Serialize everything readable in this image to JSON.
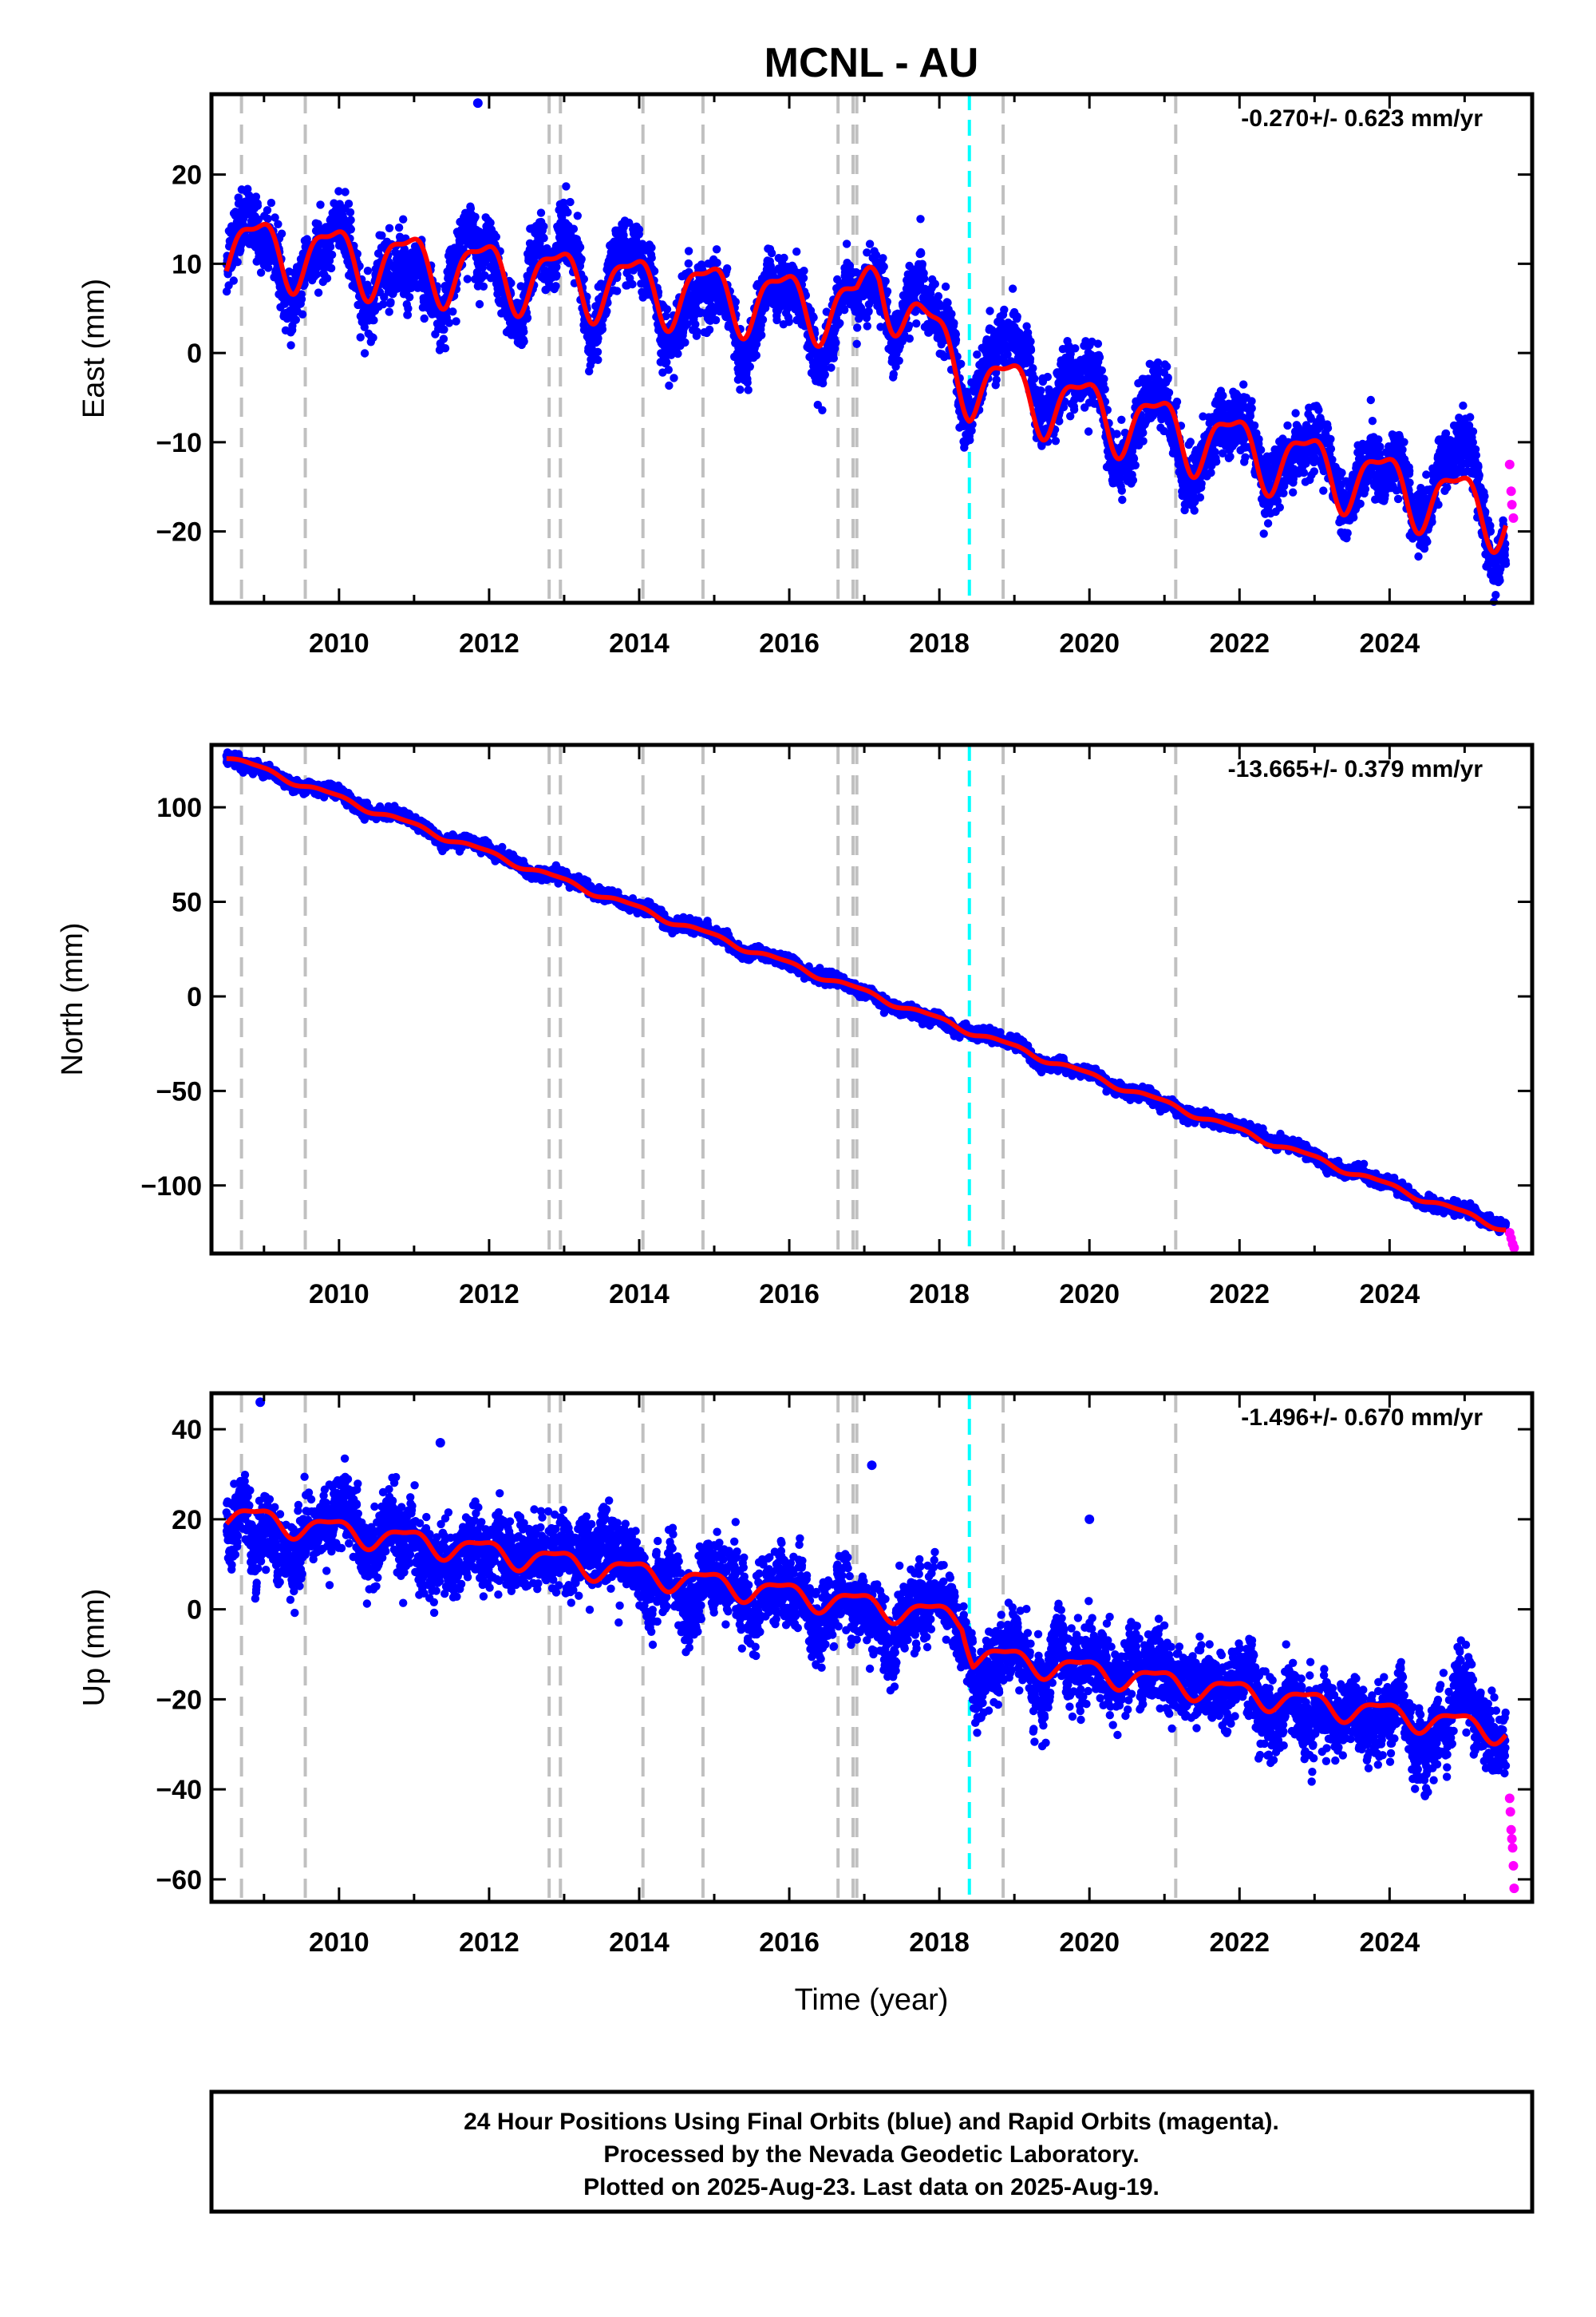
{
  "title": "MCNL - AU",
  "xlabel": "Time (year)",
  "footer": {
    "line1": "24 Hour Positions Using Final Orbits (blue) and Rapid Orbits (magenta).",
    "line2": "Processed by the Nevada Geodetic Laboratory.",
    "line3": "Plotted on 2025-Aug-23. Last data on 2025-Aug-19."
  },
  "colors": {
    "final_orbits": "#0000ff",
    "rapid_orbits": "#ff00ff",
    "fit": "#ff0000",
    "offsets": "#c0c0c0",
    "equipment_change": "#00ffff"
  },
  "chart_data": [
    {
      "type": "scatter",
      "component": "east",
      "ylabel": "East (mm)",
      "rate": "-0.270+/- 0.623 mm/yr",
      "xlim": [
        2008.3,
        2025.9
      ],
      "ylim": [
        -28,
        29
      ],
      "xticks": [
        "2010",
        "2012",
        "2014",
        "2016",
        "2018",
        "2020",
        "2022",
        "2024"
      ],
      "yticks": [
        "20",
        "10",
        "0",
        "−10",
        "−20"
      ],
      "ytick_values": [
        20,
        10,
        0,
        -10,
        -20
      ],
      "data_start": 2008.5,
      "data_end": 2025.55,
      "offsets": [
        2008.7,
        2009.55,
        2012.8,
        2012.95,
        2014.05,
        2014.85,
        2016.65,
        2016.85,
        2016.9,
        2018.85,
        2021.15
      ],
      "equipment_change": [
        2018.4
      ],
      "trend_points": [
        [
          2008.5,
          12
        ],
        [
          2016.9,
          5
        ],
        [
          2017.2,
          8.5
        ],
        [
          2018.4,
          -3
        ],
        [
          2025.55,
          -18
        ]
      ],
      "annual_amplitude": 3.5,
      "outliers": [
        [
          2011.85,
          28
        ]
      ],
      "rapid_points": [
        [
          2025.6,
          -12.5
        ],
        [
          2025.62,
          -15.5
        ],
        [
          2025.63,
          -17
        ],
        [
          2025.65,
          -18.5
        ]
      ]
    },
    {
      "type": "scatter",
      "component": "north",
      "ylabel": "North (mm)",
      "rate": "-13.665+/- 0.379 mm/yr",
      "xlim": [
        2008.3,
        2025.9
      ],
      "ylim": [
        -136,
        133
      ],
      "xticks": [
        "2010",
        "2012",
        "2014",
        "2016",
        "2018",
        "2020",
        "2022",
        "2024"
      ],
      "yticks": [
        "100",
        "50",
        "0",
        "−50",
        "−100"
      ],
      "ytick_values": [
        100,
        50,
        0,
        -50,
        -100
      ],
      "data_start": 2008.5,
      "data_end": 2025.55,
      "offsets": [
        2008.7,
        2009.55,
        2012.8,
        2012.95,
        2014.05,
        2014.85,
        2016.65,
        2016.85,
        2016.9,
        2018.85,
        2021.15
      ],
      "equipment_change": [
        2018.4
      ],
      "trend_points": [
        [
          2008.5,
          127
        ],
        [
          2025.55,
          -123
        ]
      ],
      "annual_amplitude": 1.5,
      "outliers": [],
      "rapid_points": [
        [
          2025.6,
          -125
        ],
        [
          2025.62,
          -128
        ],
        [
          2025.64,
          -131
        ],
        [
          2025.66,
          -133
        ]
      ]
    },
    {
      "type": "scatter",
      "component": "up",
      "ylabel": "Up (mm)",
      "rate": "-1.496+/- 0.670 mm/yr",
      "xlim": [
        2008.3,
        2025.9
      ],
      "ylim": [
        -65,
        48
      ],
      "xticks": [
        "2010",
        "2012",
        "2014",
        "2016",
        "2018",
        "2020",
        "2022",
        "2024"
      ],
      "yticks": [
        "40",
        "20",
        "0",
        "−20",
        "−40",
        "−60"
      ],
      "ytick_values": [
        40,
        20,
        0,
        -20,
        -40,
        -60
      ],
      "data_start": 2008.5,
      "data_end": 2025.55,
      "offsets": [
        2008.7,
        2009.55,
        2012.8,
        2012.95,
        2014.05,
        2014.85,
        2016.65,
        2016.85,
        2016.9,
        2018.85,
        2021.15
      ],
      "equipment_change": [
        2018.4
      ],
      "trend_points": [
        [
          2008.5,
          21
        ],
        [
          2018.3,
          -2
        ],
        [
          2018.45,
          -10
        ],
        [
          2025.55,
          -27
        ]
      ],
      "annual_amplitude": 2.5,
      "outliers": [
        [
          2008.95,
          46
        ],
        [
          2011.35,
          37
        ],
        [
          2017.1,
          32
        ],
        [
          2020.0,
          20
        ],
        [
          2018.55,
          -24
        ]
      ],
      "rapid_points": [
        [
          2025.6,
          -42
        ],
        [
          2025.61,
          -45
        ],
        [
          2025.62,
          -49
        ],
        [
          2025.63,
          -51
        ],
        [
          2025.64,
          -53
        ],
        [
          2025.65,
          -57
        ],
        [
          2025.66,
          -62
        ]
      ]
    }
  ]
}
